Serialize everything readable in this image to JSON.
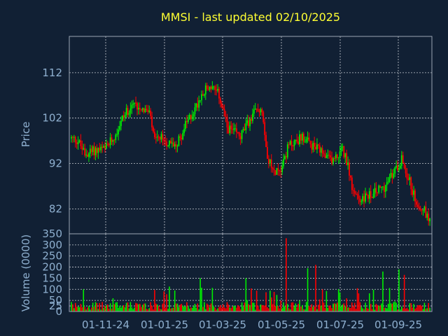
{
  "chart_data": [
    {
      "type": "candlestick",
      "title": "MMSI - last updated 02/10/2025",
      "ylabel": "Price",
      "ylim": [
        76.5,
        120
      ],
      "yticks": [
        82,
        92,
        102,
        112
      ],
      "grid": true,
      "colors": {
        "up": "#00ee00",
        "down": "#ff0000"
      },
      "x_tick_labels": [
        "01-11-24",
        "01-01-25",
        "01-03-25",
        "01-05-25",
        "01-07-25",
        "01-09-25"
      ],
      "anchors": [
        [
          0,
          97.5
        ],
        [
          5,
          97
        ],
        [
          10,
          94
        ],
        [
          18,
          95
        ],
        [
          25,
          95
        ],
        [
          32,
          98
        ],
        [
          38,
          102
        ],
        [
          45,
          105
        ],
        [
          52,
          104.5
        ],
        [
          58,
          103
        ],
        [
          62,
          97
        ],
        [
          68,
          97.5
        ],
        [
          74,
          96
        ],
        [
          80,
          97
        ],
        [
          86,
          101
        ],
        [
          92,
          104
        ],
        [
          98,
          108
        ],
        [
          104,
          109
        ],
        [
          110,
          107
        ],
        [
          116,
          100
        ],
        [
          120,
          99
        ],
        [
          126,
          98
        ],
        [
          132,
          101
        ],
        [
          138,
          104
        ],
        [
          142,
          104
        ],
        [
          146,
          94
        ],
        [
          150,
          90
        ],
        [
          156,
          91
        ],
        [
          162,
          96
        ],
        [
          168,
          97
        ],
        [
          172,
          98
        ],
        [
          178,
          96
        ],
        [
          184,
          95
        ],
        [
          190,
          93
        ],
        [
          196,
          93
        ],
        [
          202,
          95
        ],
        [
          206,
          92
        ],
        [
          210,
          85
        ],
        [
          216,
          84
        ],
        [
          222,
          85
        ],
        [
          228,
          86
        ],
        [
          234,
          87
        ],
        [
          240,
          90
        ],
        [
          246,
          93
        ],
        [
          252,
          88
        ],
        [
          256,
          84
        ],
        [
          262,
          82
        ],
        [
          266,
          80
        ]
      ]
    },
    {
      "type": "bar",
      "ylabel": "Volume (0000)",
      "ylim": [
        0,
        350
      ],
      "yticks": [
        0,
        25,
        50,
        100,
        150,
        200,
        250,
        300,
        350
      ],
      "grid": true,
      "highlights": [
        [
          160,
          330
        ],
        [
          182,
          210
        ],
        [
          176,
          195
        ],
        [
          244,
          190
        ],
        [
          248,
          165
        ],
        [
          232,
          180
        ],
        [
          96,
          150
        ],
        [
          130,
          150
        ]
      ]
    }
  ]
}
